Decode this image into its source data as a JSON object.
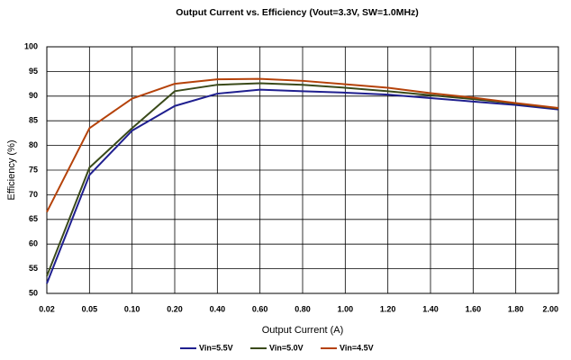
{
  "chart_data": {
    "type": "line",
    "title": "Output Current vs. Efficiency (Vout=3.3V, SW=1.0MHz)",
    "x_label": "Output Current (A)",
    "y_label": "Efficiency (%)",
    "categories": [
      "0.02",
      "0.05",
      "0.10",
      "0.20",
      "0.40",
      "0.60",
      "0.80",
      "1.00",
      "1.20",
      "1.40",
      "1.60",
      "1.80",
      "2.00"
    ],
    "series": [
      {
        "name": "Vin=5.5V",
        "color": "#1f1f8f",
        "values": [
          52,
          74,
          83,
          88,
          90.5,
          91.3,
          91,
          90.7,
          90.3,
          89.6,
          88.9,
          88.2,
          87.3
        ]
      },
      {
        "name": "Vin=5.0V",
        "color": "#3a4a1a",
        "values": [
          53.5,
          75.5,
          83.5,
          91,
          92.3,
          92.6,
          92.3,
          91.7,
          91,
          90.2,
          89.4,
          88.5,
          87.5
        ]
      },
      {
        "name": "Vin=4.5V",
        "color": "#b5420a",
        "values": [
          66.5,
          83.5,
          89.5,
          92.5,
          93.4,
          93.5,
          93.1,
          92.4,
          91.7,
          90.6,
          89.7,
          88.6,
          87.6
        ]
      }
    ],
    "ylim": [
      50,
      100
    ],
    "yticks": [
      50,
      55,
      60,
      65,
      70,
      75,
      80,
      85,
      90,
      95,
      100
    ],
    "grid": true
  }
}
